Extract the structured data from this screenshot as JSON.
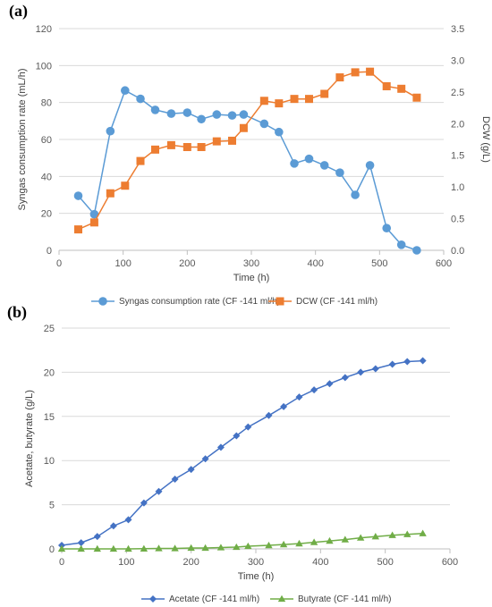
{
  "chart_data": [
    {
      "panel_label": "(a)",
      "type": "line",
      "xlabel": "Time (h)",
      "ylabel": "Syngas consumption rate (mL/h)",
      "y2label": "DCW (g/L)",
      "xlim": [
        0,
        600
      ],
      "ylim": [
        0,
        120
      ],
      "y2lim": [
        0,
        3.5
      ],
      "x_ticks": [
        "0",
        "100",
        "200",
        "300",
        "400",
        "500",
        "600"
      ],
      "y_ticks": [
        "0",
        "20",
        "40",
        "60",
        "80",
        "100",
        "120"
      ],
      "y2_ticks": [
        "0.0",
        "0.5",
        "1.0",
        "1.5",
        "2.0",
        "2.5",
        "3.0",
        "3.5"
      ],
      "grid": true,
      "legend_position": "bottom",
      "series": [
        {
          "name": "Syngas consumption rate (CF -141 ml/h)",
          "axis": "left",
          "color": "#5b9bd5",
          "marker": "circle",
          "x": [
            30,
            55,
            80,
            103,
            127,
            150,
            175,
            200,
            222,
            246,
            270,
            288,
            320,
            343,
            367,
            390,
            414,
            438,
            462,
            485,
            511,
            534,
            558
          ],
          "y": [
            29.5,
            19.5,
            64.5,
            86.5,
            82,
            76,
            74,
            74.5,
            71,
            73.5,
            73,
            73.5,
            68.5,
            64,
            47,
            49.5,
            46,
            42,
            30,
            46,
            12,
            3,
            0
          ]
        },
        {
          "name": "DCW (CF -141 ml/h)",
          "axis": "right",
          "color": "#ed7d31",
          "marker": "square",
          "x": [
            30,
            55,
            80,
            103,
            127,
            150,
            175,
            200,
            222,
            246,
            270,
            288,
            320,
            343,
            367,
            390,
            414,
            438,
            462,
            485,
            511,
            534,
            558
          ],
          "y": [
            0.33,
            0.44,
            0.9,
            1.02,
            1.41,
            1.59,
            1.66,
            1.63,
            1.63,
            1.72,
            1.73,
            1.93,
            2.36,
            2.32,
            2.39,
            2.39,
            2.47,
            2.73,
            2.81,
            2.82,
            2.59,
            2.55,
            2.41
          ]
        }
      ]
    },
    {
      "panel_label": "(b)",
      "type": "line",
      "xlabel": "Time (h)",
      "ylabel": "Acetate, butyrate (g/L)",
      "xlim": [
        0,
        600
      ],
      "ylim": [
        0,
        25
      ],
      "x_ticks": [
        "0",
        "100",
        "200",
        "300",
        "400",
        "500",
        "600"
      ],
      "y_ticks": [
        "0",
        "5",
        "10",
        "15",
        "20",
        "25"
      ],
      "grid": true,
      "legend_position": "bottom",
      "series": [
        {
          "name": "Acetate (CF -141 ml/h)",
          "color": "#4472c4",
          "marker": "diamond",
          "x": [
            0,
            30,
            55,
            80,
            103,
            127,
            150,
            175,
            200,
            222,
            246,
            270,
            288,
            320,
            343,
            367,
            390,
            414,
            438,
            462,
            485,
            511,
            534,
            558
          ],
          "y": [
            0.4,
            0.7,
            1.4,
            2.6,
            3.3,
            5.2,
            6.5,
            7.9,
            9.0,
            10.2,
            11.5,
            12.8,
            13.8,
            15.1,
            16.1,
            17.2,
            18.0,
            18.7,
            19.4,
            20.0,
            20.4,
            20.9,
            21.2,
            21.3
          ]
        },
        {
          "name": "Butyrate (CF -141 ml/h)",
          "color": "#70ad47",
          "marker": "triangle",
          "x": [
            0,
            30,
            55,
            80,
            103,
            127,
            150,
            175,
            200,
            222,
            246,
            270,
            288,
            320,
            343,
            367,
            390,
            414,
            438,
            462,
            485,
            511,
            534,
            558
          ],
          "y": [
            0,
            0,
            0,
            0,
            0,
            0.02,
            0.05,
            0.05,
            0.1,
            0.1,
            0.15,
            0.2,
            0.3,
            0.4,
            0.5,
            0.6,
            0.75,
            0.9,
            1.05,
            1.25,
            1.4,
            1.55,
            1.65,
            1.75
          ]
        }
      ]
    }
  ]
}
